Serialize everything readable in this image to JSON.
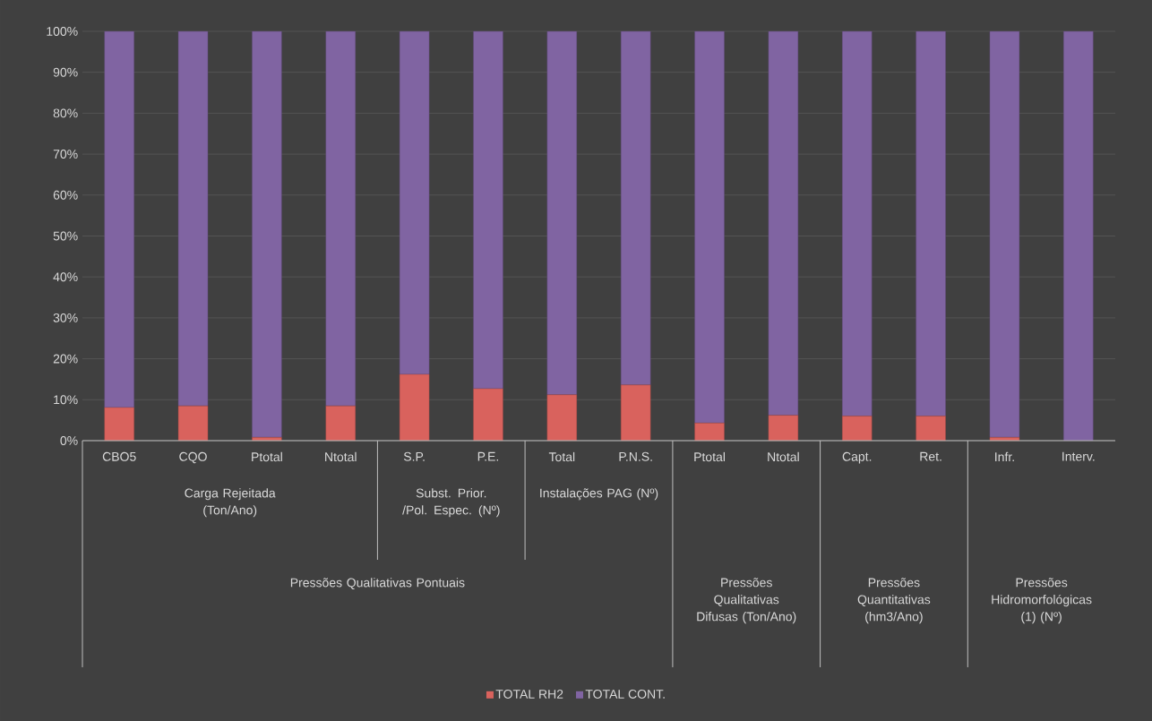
{
  "chart_data": {
    "type": "bar",
    "stacked": true,
    "categories": [
      "CBO5",
      "CQO",
      "Ptotal",
      "Ntotal",
      "S.P.",
      "P.E.",
      "Total",
      "P.N.S.",
      "Ptotal",
      "Ntotal",
      "Capt.",
      "Ret.",
      "Infr.",
      "Interv."
    ],
    "series": [
      {
        "name": "TOTAL RH2",
        "color": "#d9625d",
        "values": [
          8.1,
          8.5,
          0.8,
          8.5,
          16.2,
          12.7,
          11.2,
          13.6,
          4.3,
          6.2,
          6,
          6,
          0.8,
          0
        ]
      },
      {
        "name": "TOTAL CONT.",
        "color": "#8064a2",
        "values": [
          91.9,
          91.5,
          99.2,
          91.5,
          83.8,
          87.3,
          88.8,
          86.4,
          95.7,
          93.8,
          94,
          94,
          99.2,
          100
        ]
      }
    ],
    "ylim": [
      0,
      100
    ],
    "yticks": [
      {
        "value": 0,
        "label": "0%"
      },
      {
        "value": 10,
        "label": "10%"
      },
      {
        "value": 20,
        "label": "20%"
      },
      {
        "value": 30,
        "label": "30%"
      },
      {
        "value": 40,
        "label": "40%"
      },
      {
        "value": 50,
        "label": "50%"
      },
      {
        "value": 60,
        "label": "60%"
      },
      {
        "value": 70,
        "label": "70%"
      },
      {
        "value": 80,
        "label": "80%"
      },
      {
        "value": 90,
        "label": "90%"
      },
      {
        "value": 100,
        "label": "100%"
      }
    ],
    "grid": "y",
    "legend": "bottom",
    "annotations": [
      "Carga Rejeitada (Ton/Ano)",
      "Subst. Prior. /Pol. Espec. (Nº)",
      "Instalações PAG (Nº)",
      "Pressões Qualitativas Pontuais",
      "Pressões Qualitativas Difusas (Ton/Ano)",
      "Pressões Quantitativas (hm3/Ano)",
      "Pressões Hidromorfológicas (1) (Nº)"
    ]
  }
}
